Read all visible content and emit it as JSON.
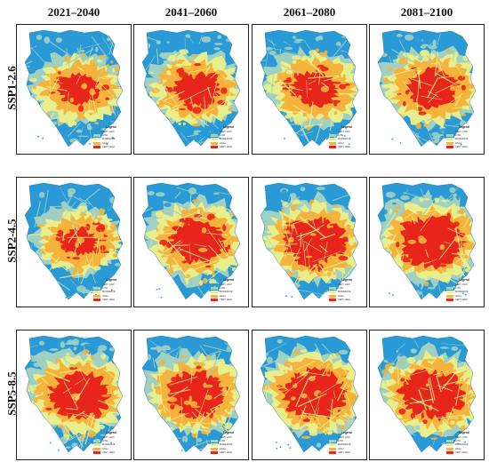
{
  "figure": {
    "columns": [
      {
        "label": "2021–2040"
      },
      {
        "label": "2041–2060"
      },
      {
        "label": "2061–2080"
      },
      {
        "label": "2081–2100"
      }
    ],
    "rows": [
      {
        "label": "SSP1-2.6",
        "intensity": [
          0.45,
          0.5,
          0.52,
          0.58
        ]
      },
      {
        "label": "SSP2-4.5",
        "intensity": [
          0.4,
          0.62,
          0.66,
          0.7
        ]
      },
      {
        "label": "SSP5-8.5",
        "intensity": [
          0.66,
          0.64,
          0.7,
          0.7
        ]
      }
    ],
    "legend": {
      "title": "Legend",
      "classes": [
        {
          "label": "VERY LOW",
          "color": "#2a9ad6"
        },
        {
          "label": "LOW",
          "color": "#9fd0c2"
        },
        {
          "label": "MODERATE",
          "color": "#e8ee8c"
        },
        {
          "label": "HIGH",
          "color": "#f5b33c"
        },
        {
          "label": "VERY HIGH",
          "color": "#e8251a"
        }
      ]
    }
  }
}
